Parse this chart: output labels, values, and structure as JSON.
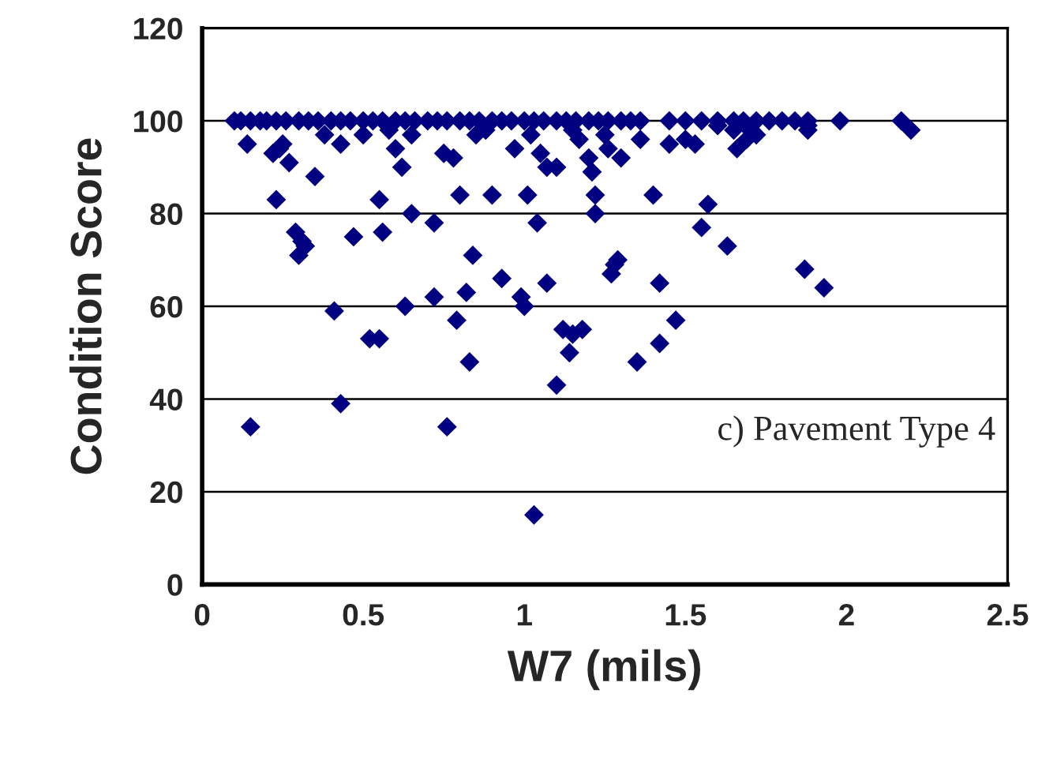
{
  "chart_data": {
    "type": "scatter",
    "xlabel": "W7 (mils)",
    "ylabel": "Condition Score",
    "annotations": [
      "c) Pavement Type 4"
    ],
    "xlim": [
      0,
      2.5
    ],
    "xticks": [
      0,
      0.5,
      1,
      1.5,
      2,
      2.5
    ],
    "ylim": [
      0,
      120
    ],
    "yticks": [
      0,
      20,
      40,
      60,
      80,
      100,
      120
    ],
    "grid": "y",
    "marker": "diamond",
    "legend": false,
    "series": [
      {
        "color": "#000080",
        "x": [
          0.1,
          0.12,
          0.15,
          0.18,
          0.2,
          0.23,
          0.26,
          0.3,
          0.33,
          0.36,
          0.4,
          0.43,
          0.46,
          0.5,
          0.53,
          0.56,
          0.6,
          0.63,
          0.66,
          0.7,
          0.73,
          0.76,
          0.8,
          0.83,
          0.86,
          0.9,
          0.93,
          0.96,
          1.0,
          1.03,
          1.06,
          1.1,
          1.13,
          1.16,
          1.2,
          1.23,
          1.26,
          1.3,
          1.33,
          1.36,
          1.45,
          1.5,
          1.55,
          1.6,
          1.65,
          1.68,
          1.72,
          1.76,
          1.8,
          1.84,
          1.88,
          1.98,
          2.17,
          0.5,
          0.58,
          0.65,
          0.88,
          1.15,
          1.25,
          1.6,
          1.65,
          1.7,
          1.88,
          0.14,
          0.15,
          0.22,
          0.24,
          0.25,
          0.23,
          0.27,
          0.29,
          0.3,
          0.31,
          0.32,
          0.35,
          0.38,
          0.41,
          0.43,
          0.43,
          0.47,
          0.52,
          0.55,
          0.55,
          0.56,
          0.6,
          0.62,
          0.63,
          0.65,
          0.72,
          0.72,
          0.76,
          0.75,
          0.78,
          0.79,
          0.8,
          0.82,
          0.83,
          0.84,
          0.85,
          0.9,
          0.93,
          0.97,
          0.99,
          1.0,
          1.01,
          1.02,
          1.03,
          1.04,
          1.05,
          1.07,
          1.07,
          1.1,
          1.1,
          1.12,
          1.14,
          1.15,
          1.18,
          1.17,
          1.2,
          1.21,
          1.22,
          1.22,
          1.26,
          1.27,
          1.28,
          1.29,
          1.3,
          1.35,
          1.36,
          1.4,
          1.42,
          1.42,
          1.45,
          1.47,
          1.5,
          1.53,
          1.55,
          1.57,
          1.63,
          1.66,
          1.69,
          1.72,
          1.87,
          1.88,
          1.93,
          2.2
        ],
        "values": [
          100,
          100,
          100,
          100,
          100,
          100,
          100,
          100,
          100,
          100,
          100,
          100,
          100,
          100,
          100,
          100,
          100,
          100,
          100,
          100,
          100,
          100,
          100,
          100,
          100,
          100,
          100,
          100,
          100,
          100,
          100,
          100,
          100,
          100,
          100,
          100,
          100,
          100,
          100,
          100,
          100,
          100,
          100,
          100,
          100,
          100,
          100,
          100,
          100,
          100,
          100,
          100,
          100,
          97,
          98,
          97,
          98,
          98,
          97,
          99,
          98,
          98,
          99,
          95,
          34,
          93,
          94,
          95,
          83,
          91,
          76,
          71,
          74,
          73,
          88,
          97,
          59,
          95,
          39,
          75,
          53,
          53,
          83,
          76,
          94,
          90,
          60,
          80,
          62,
          78,
          34,
          93,
          92,
          57,
          84,
          63,
          48,
          71,
          97,
          84,
          66,
          94,
          62,
          60,
          84,
          97,
          15,
          78,
          93,
          65,
          90,
          90,
          43,
          55,
          50,
          54,
          55,
          96,
          92,
          89,
          84,
          80,
          94,
          67,
          69,
          70,
          92,
          48,
          96,
          84,
          65,
          52,
          95,
          57,
          96,
          95,
          77,
          82,
          73,
          94,
          96,
          97,
          68,
          98,
          64,
          98
        ]
      }
    ]
  }
}
